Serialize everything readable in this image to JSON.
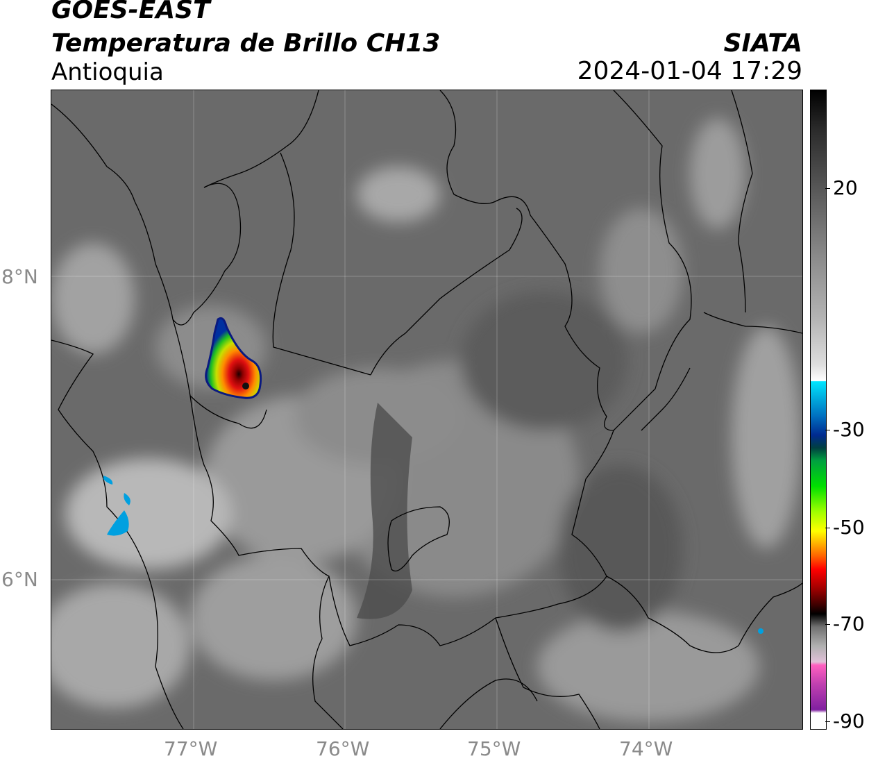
{
  "header": {
    "satellite": "GOES-EAST",
    "product": "Temperatura de Brillo CH13",
    "region": "Antioquia",
    "organization": "SIATA",
    "timestamp": "2024-01-04 17:29"
  },
  "axes": {
    "lon_ticks": [
      "77°W",
      "76°W",
      "75°W",
      "74°W"
    ],
    "lat_ticks": [
      "8°N",
      "6°N"
    ]
  },
  "colorbar": {
    "ticks": [
      "20",
      "-30",
      "-50",
      "-70",
      "-90"
    ]
  }
}
